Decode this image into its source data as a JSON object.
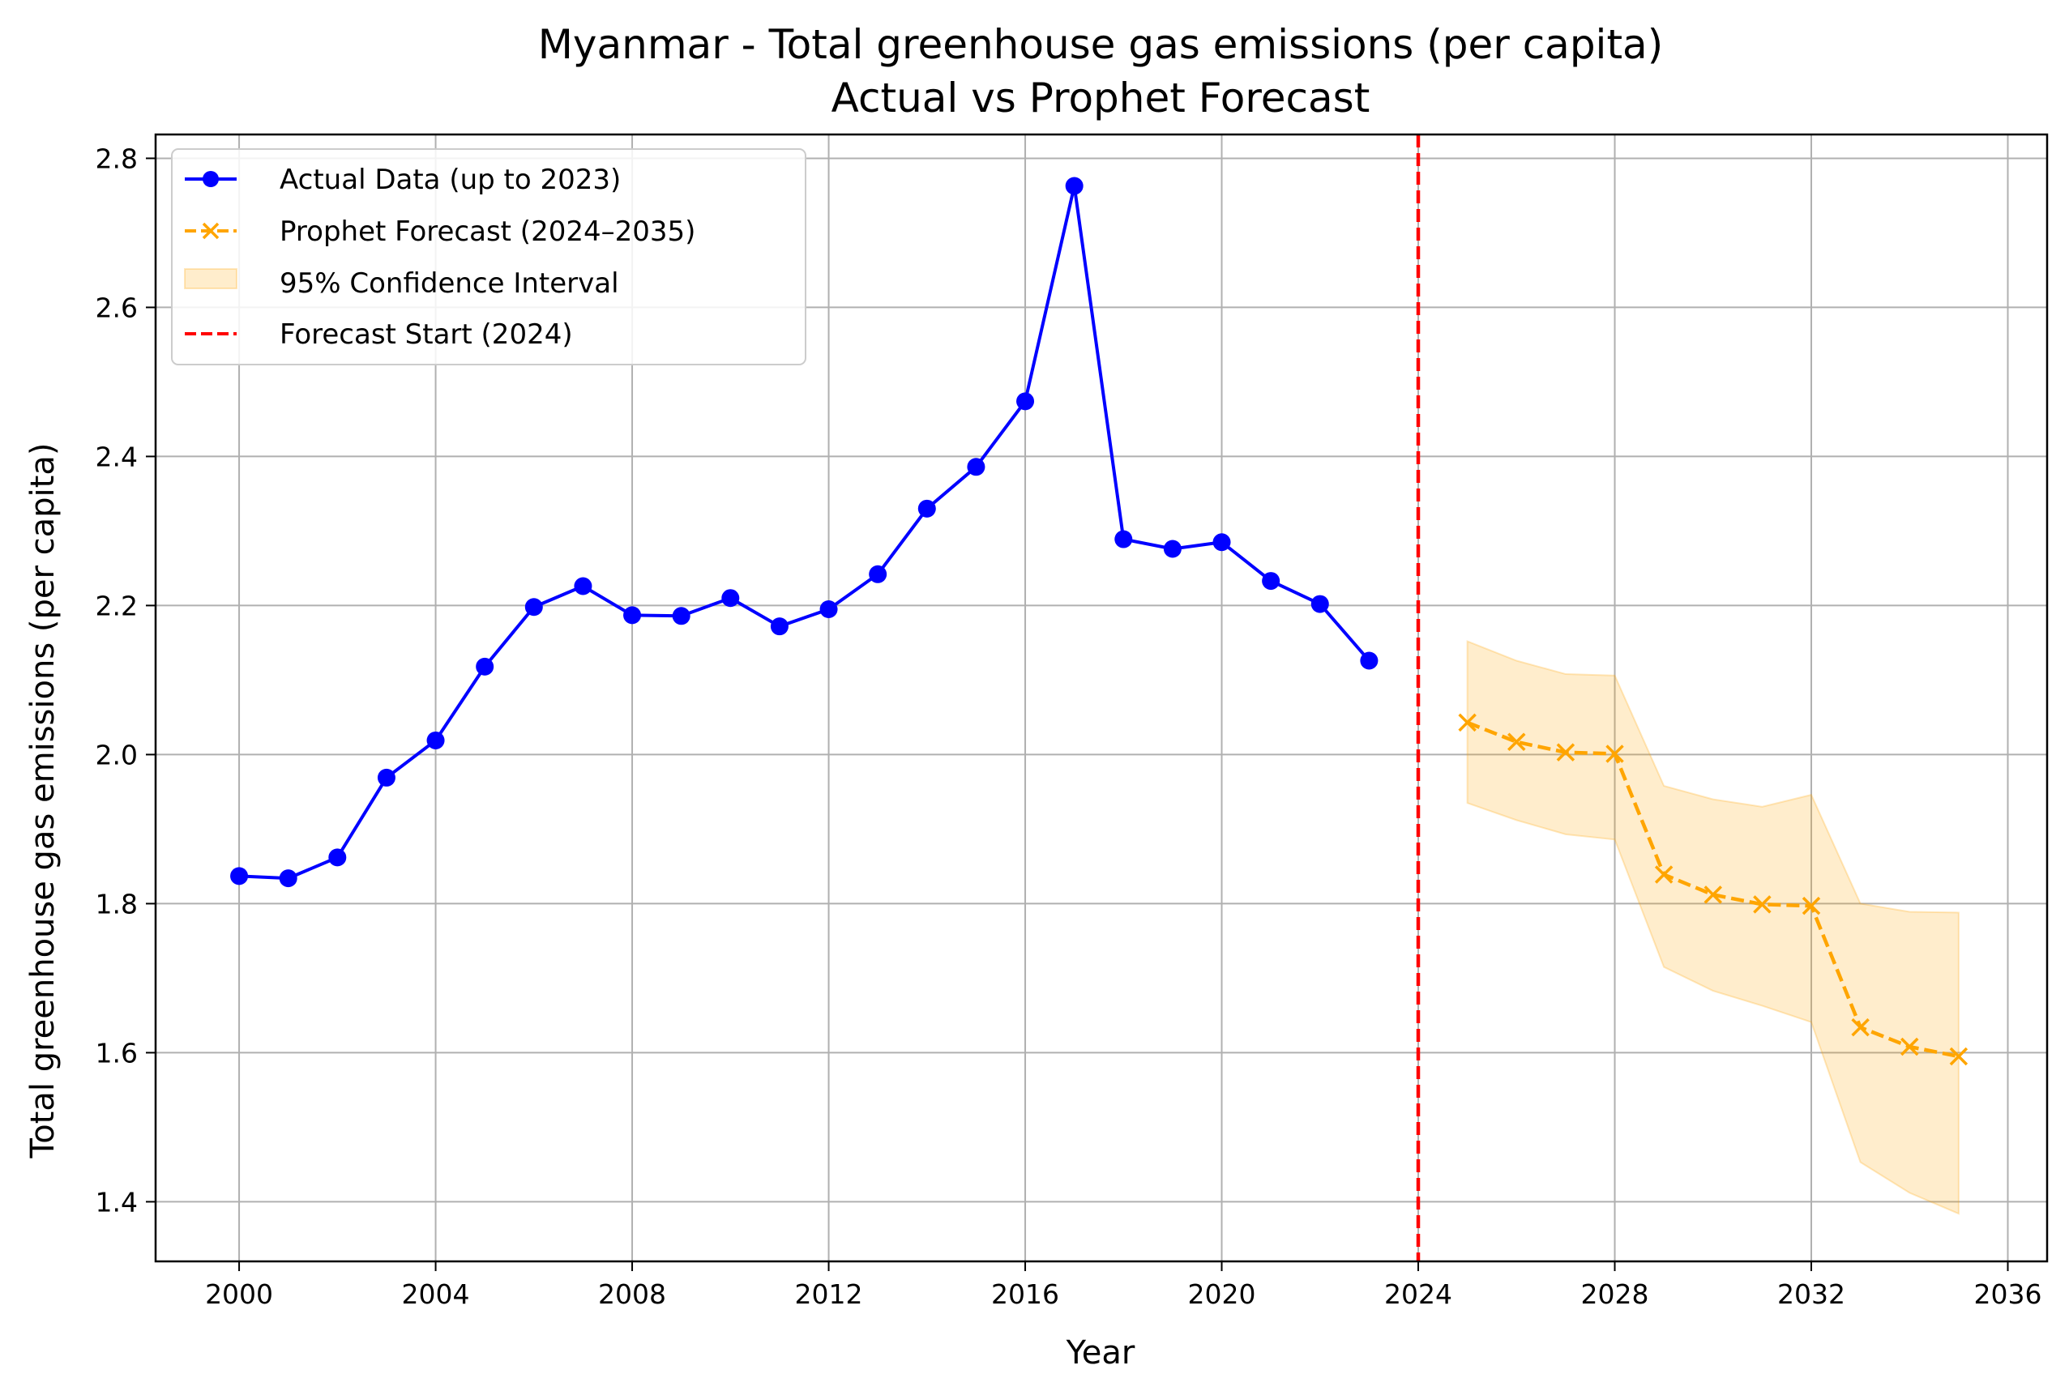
{
  "chart_data": {
    "type": "line",
    "title": "Myanmar - Total greenhouse gas emissions (per capita)",
    "subtitle": "Actual vs Prophet Forecast",
    "xlabel": "Year",
    "ylabel": "Total greenhouse gas emissions (per capita)",
    "xlim": [
      1998.3,
      2036.8
    ],
    "ylim": [
      1.32,
      2.832
    ],
    "xticks": [
      2000,
      2004,
      2008,
      2012,
      2016,
      2020,
      2024,
      2028,
      2032,
      2036
    ],
    "yticks": [
      1.4,
      1.6,
      1.8,
      2.0,
      2.2,
      2.4,
      2.6,
      2.8
    ],
    "xtick_labels": [
      "2000",
      "2004",
      "2008",
      "2012",
      "2016",
      "2020",
      "2024",
      "2028",
      "2032",
      "2036"
    ],
    "ytick_labels": [
      "1.4",
      "1.6",
      "1.8",
      "2.0",
      "2.2",
      "2.4",
      "2.6",
      "2.8"
    ],
    "grid": true,
    "legend_position": "top-left",
    "colors": {
      "actual": "#0000ff",
      "forecast": "#ffa500",
      "confidence": "#ffa500",
      "forecast_start": "#ff0000",
      "grid": "#b0b0b0"
    },
    "series": [
      {
        "name": "Actual Data (up to 2023)",
        "style": "solid-line-circle-markers",
        "x": [
          2000,
          2001,
          2002,
          2003,
          2004,
          2005,
          2006,
          2007,
          2008,
          2009,
          2010,
          2011,
          2012,
          2013,
          2014,
          2015,
          2016,
          2017,
          2018,
          2019,
          2020,
          2021,
          2022,
          2023
        ],
        "y": [
          1.837,
          1.834,
          1.862,
          1.969,
          2.019,
          2.118,
          2.198,
          2.226,
          2.187,
          2.186,
          2.21,
          2.172,
          2.195,
          2.242,
          2.33,
          2.386,
          2.474,
          2.763,
          2.289,
          2.276,
          2.285,
          2.233,
          2.202,
          2.126
        ]
      },
      {
        "name": "Prophet Forecast (2024–2035)",
        "style": "dashed-line-x-markers",
        "x": [
          2025,
          2026,
          2027,
          2028,
          2029,
          2030,
          2031,
          2032,
          2033,
          2034,
          2035
        ],
        "y": [
          2.043,
          2.017,
          2.003,
          2.001,
          1.839,
          1.812,
          1.799,
          1.797,
          1.634,
          1.608,
          1.595
        ]
      }
    ],
    "confidence_interval": {
      "name": "95% Confidence Interval",
      "x": [
        2025,
        2026,
        2027,
        2028,
        2029,
        2030,
        2031,
        2032,
        2033,
        2034,
        2035
      ],
      "lower": [
        1.935,
        1.912,
        1.893,
        1.886,
        1.715,
        1.683,
        1.663,
        1.641,
        1.453,
        1.412,
        1.384
      ],
      "upper": [
        2.152,
        2.126,
        2.108,
        2.106,
        1.958,
        1.94,
        1.93,
        1.946,
        1.8,
        1.789,
        1.788
      ]
    },
    "forecast_start": {
      "name": "Forecast Start (2024)",
      "x": 2024
    }
  }
}
